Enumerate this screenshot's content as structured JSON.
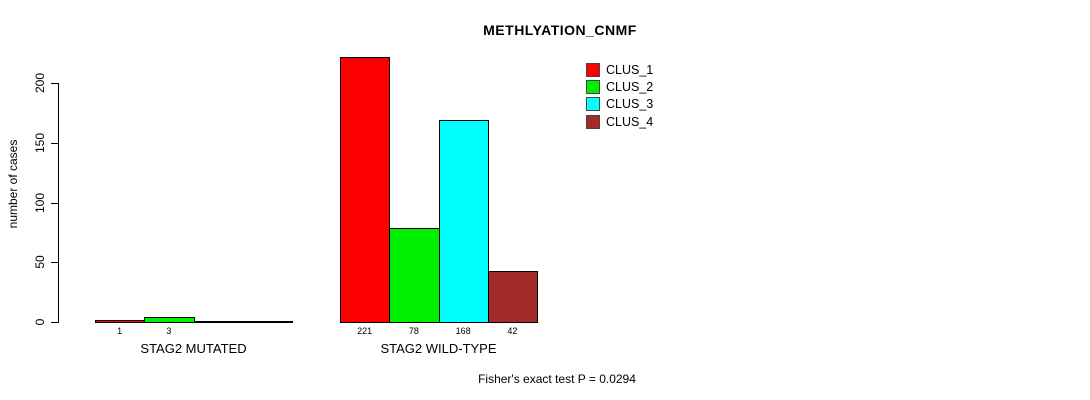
{
  "chart_data": {
    "type": "bar",
    "title": "METHLYATION_CNMF",
    "xlabel": "",
    "ylabel": "number of cases",
    "ylim": [
      0,
      200
    ],
    "y_ticks": [
      0,
      50,
      100,
      150,
      200
    ],
    "grid": false,
    "legend_position": "top-right",
    "categories": [
      "STAG2 MUTATED",
      "STAG2 WILD-TYPE"
    ],
    "series": [
      {
        "name": "CLUS_1",
        "color": "#ff0000",
        "values": [
          1,
          221
        ]
      },
      {
        "name": "CLUS_2",
        "color": "#00ee00",
        "values": [
          3,
          78
        ]
      },
      {
        "name": "CLUS_3",
        "color": "#00ffff",
        "values": [
          0,
          168
        ]
      },
      {
        "name": "CLUS_4",
        "color": "#a52a2a",
        "values": [
          0,
          42
        ]
      }
    ],
    "visible_bar_value_labels": [
      "1",
      "3",
      "221",
      "78",
      "168",
      "42"
    ],
    "annotation": "Fisher's exact test P = 0.0294"
  }
}
